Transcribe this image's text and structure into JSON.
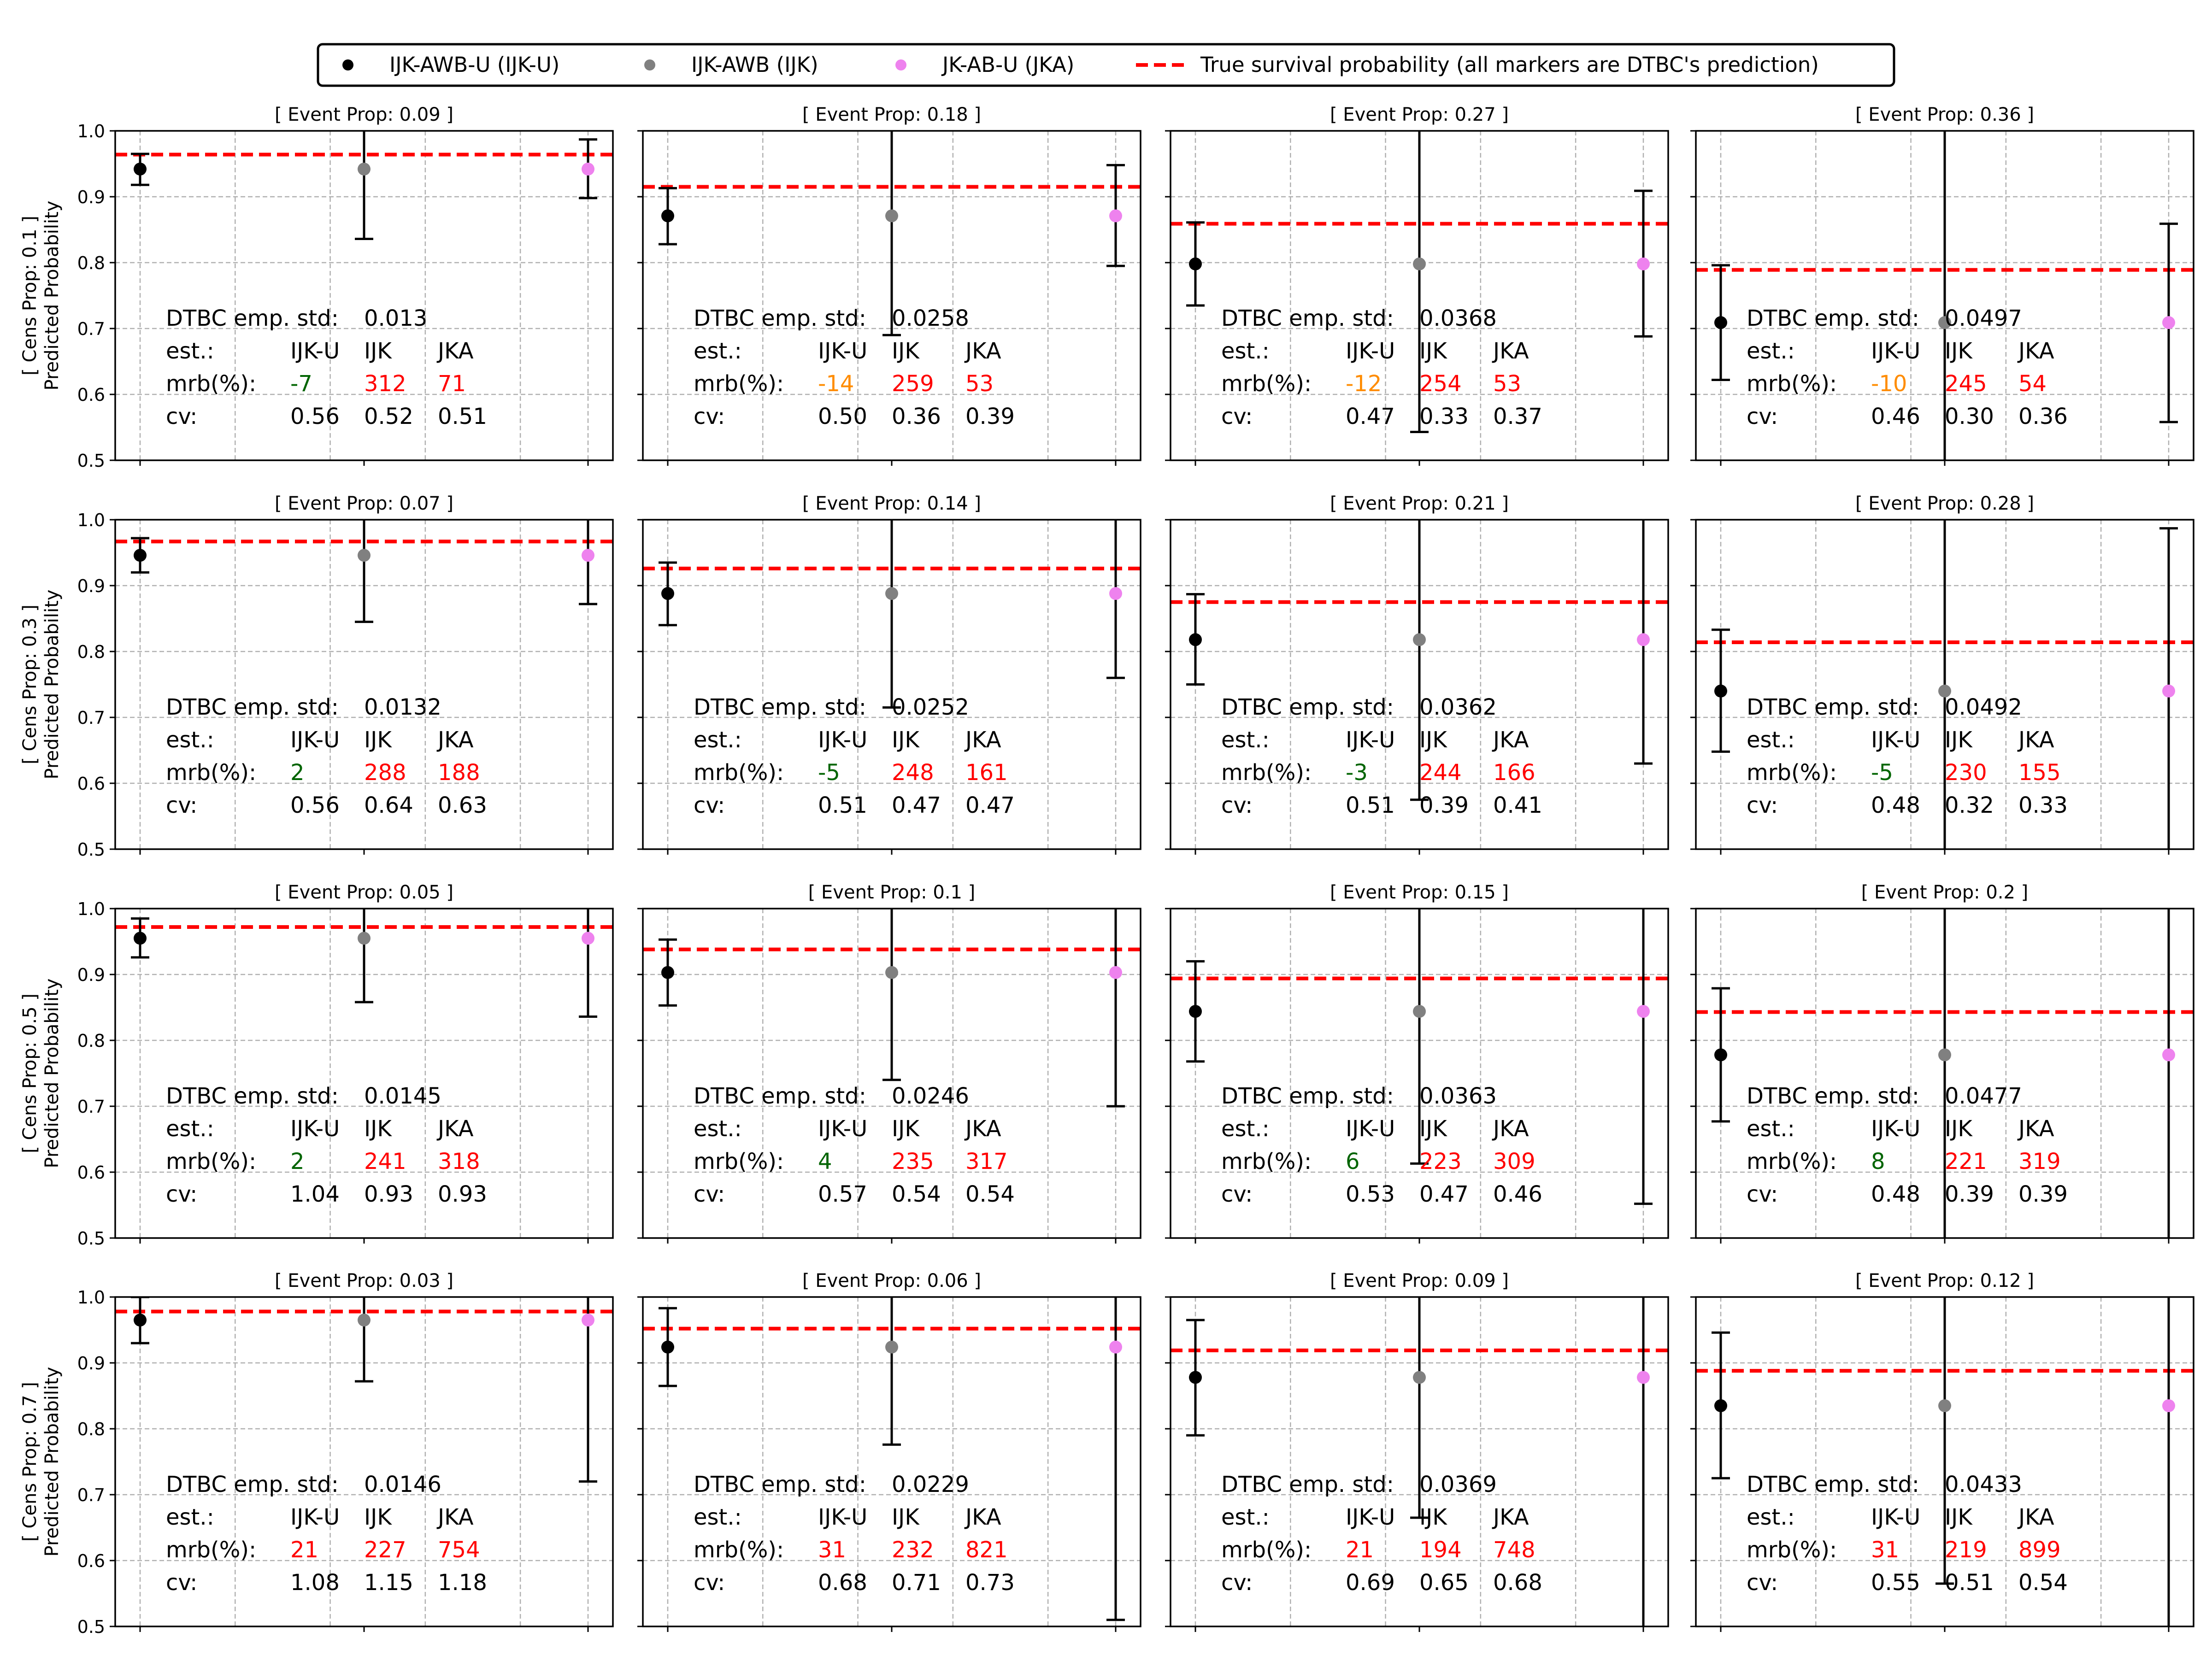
{
  "colors": {
    "IJK-U": "#000000",
    "IJK": "#808080",
    "JKA": "#ee82ee",
    "true_line": "#ff0000",
    "mrb_green": "#006400",
    "mrb_orange": "#ff8c00",
    "mrb_red": "#ff0000",
    "grid": "#b0b0b0"
  },
  "legend": [
    {
      "key": "IJK-U",
      "label": "IJK-AWB-U (IJK-U)",
      "marker": "dot"
    },
    {
      "key": "IJK",
      "label": "IJK-AWB (IJK)",
      "marker": "dot"
    },
    {
      "key": "JKA",
      "label": "JK-AB-U (JKA)",
      "marker": "dot"
    },
    {
      "key": "true",
      "label": "True survival probability (all markers are DTBC's prediction)",
      "marker": "dashed-line"
    }
  ],
  "text_labels": {
    "std_label": "DTBC emp. std:",
    "est_label": "est.:",
    "mrb_label": "mrb(%):",
    "cv_label": "cv:",
    "est_names": [
      "IJK-U",
      "IJK",
      "JKA"
    ]
  },
  "chart_data": {
    "type": "scatter",
    "yaxis_label": "Predicted Probability",
    "ylim": [
      0.5,
      1.0
    ],
    "yticks": [
      "0.5",
      "0.6",
      "0.7",
      "0.8",
      "0.9",
      "1.0"
    ],
    "grid": true,
    "legend_position": "top-center",
    "rows": [
      {
        "row_label": "[ Cens Prop: 0.1 ]",
        "panels": [
          {
            "title": "[ Event Prop: 0.09 ]",
            "true_prob": 0.964,
            "point": 0.942,
            "err": [
              [
                0.918,
                0.965
              ],
              [
                0.836,
                1.04
              ],
              [
                0.898,
                0.987
              ]
            ],
            "std": "0.013",
            "mrb": [
              "-7",
              "312",
              "71"
            ],
            "mrb_color": [
              "green",
              "red",
              "red"
            ],
            "cv": [
              "0.56",
              "0.52",
              "0.51"
            ]
          },
          {
            "title": "[ Event Prop: 0.18 ]",
            "true_prob": 0.915,
            "point": 0.871,
            "err": [
              [
                0.828,
                0.913
              ],
              [
                0.69,
                1.05
              ],
              [
                0.795,
                0.948
              ]
            ],
            "std": "0.0258",
            "mrb": [
              "-14",
              "259",
              "53"
            ],
            "mrb_color": [
              "orange",
              "red",
              "red"
            ],
            "cv": [
              "0.50",
              "0.36",
              "0.39"
            ]
          },
          {
            "title": "[ Event Prop: 0.27 ]",
            "true_prob": 0.859,
            "point": 0.798,
            "err": [
              [
                0.735,
                0.861
              ],
              [
                0.543,
                1.05
              ],
              [
                0.688,
                0.909
              ]
            ],
            "std": "0.0368",
            "mrb": [
              "-12",
              "254",
              "53"
            ],
            "mrb_color": [
              "orange",
              "red",
              "red"
            ],
            "cv": [
              "0.47",
              "0.33",
              "0.37"
            ]
          },
          {
            "title": "[ Event Prop: 0.36 ]",
            "true_prob": 0.789,
            "point": 0.709,
            "err": [
              [
                0.622,
                0.796
              ],
              [
                0.48,
                1.05
              ],
              [
                0.558,
                0.859
              ]
            ],
            "std": "0.0497",
            "mrb": [
              "-10",
              "245",
              "54"
            ],
            "mrb_color": [
              "orange",
              "red",
              "red"
            ],
            "cv": [
              "0.46",
              "0.30",
              "0.36"
            ]
          }
        ]
      },
      {
        "row_label": "[ Cens Prop: 0.3 ]",
        "panels": [
          {
            "title": "[ Event Prop: 0.07 ]",
            "true_prob": 0.967,
            "point": 0.946,
            "err": [
              [
                0.92,
                0.972
              ],
              [
                0.845,
                1.05
              ],
              [
                0.872,
                1.02
              ]
            ],
            "std": "0.0132",
            "mrb": [
              "2",
              "288",
              "188"
            ],
            "mrb_color": [
              "green",
              "red",
              "red"
            ],
            "cv": [
              "0.56",
              "0.64",
              "0.63"
            ]
          },
          {
            "title": "[ Event Prop: 0.14 ]",
            "true_prob": 0.926,
            "point": 0.888,
            "err": [
              [
                0.84,
                0.935
              ],
              [
                0.715,
                1.05
              ],
              [
                0.76,
                1.02
              ]
            ],
            "std": "0.0252",
            "mrb": [
              "-5",
              "248",
              "161"
            ],
            "mrb_color": [
              "green",
              "red",
              "red"
            ],
            "cv": [
              "0.51",
              "0.47",
              "0.47"
            ]
          },
          {
            "title": "[ Event Prop: 0.21 ]",
            "true_prob": 0.875,
            "point": 0.818,
            "err": [
              [
                0.75,
                0.887
              ],
              [
                0.575,
                1.05
              ],
              [
                0.63,
                1.05
              ]
            ],
            "std": "0.0362",
            "mrb": [
              "-3",
              "244",
              "166"
            ],
            "mrb_color": [
              "green",
              "red",
              "red"
            ],
            "cv": [
              "0.51",
              "0.39",
              "0.41"
            ]
          },
          {
            "title": "[ Event Prop: 0.28 ]",
            "true_prob": 0.814,
            "point": 0.74,
            "err": [
              [
                0.648,
                0.833
              ],
              [
                0.48,
                1.05
              ],
              [
                0.48,
                0.987
              ]
            ],
            "std": "0.0492",
            "mrb": [
              "-5",
              "230",
              "155"
            ],
            "mrb_color": [
              "green",
              "red",
              "red"
            ],
            "cv": [
              "0.48",
              "0.32",
              "0.33"
            ]
          }
        ]
      },
      {
        "row_label": "[ Cens Prop: 0.5 ]",
        "panels": [
          {
            "title": "[ Event Prop: 0.05 ]",
            "true_prob": 0.972,
            "point": 0.955,
            "err": [
              [
                0.926,
                0.985
              ],
              [
                0.858,
                1.05
              ],
              [
                0.836,
                1.07
              ]
            ],
            "std": "0.0145",
            "mrb": [
              "2",
              "241",
              "318"
            ],
            "mrb_color": [
              "green",
              "red",
              "red"
            ],
            "cv": [
              "1.04",
              "0.93",
              "0.93"
            ]
          },
          {
            "title": "[ Event Prop: 0.1 ]",
            "true_prob": 0.938,
            "point": 0.903,
            "err": [
              [
                0.853,
                0.953
              ],
              [
                0.74,
                1.05
              ],
              [
                0.7,
                1.05
              ]
            ],
            "std": "0.0246",
            "mrb": [
              "4",
              "235",
              "317"
            ],
            "mrb_color": [
              "green",
              "red",
              "red"
            ],
            "cv": [
              "0.57",
              "0.54",
              "0.54"
            ]
          },
          {
            "title": "[ Event Prop: 0.15 ]",
            "true_prob": 0.894,
            "point": 0.844,
            "err": [
              [
                0.768,
                0.92
              ],
              [
                0.613,
                1.05
              ],
              [
                0.552,
                1.05
              ]
            ],
            "std": "0.0363",
            "mrb": [
              "6",
              "223",
              "309"
            ],
            "mrb_color": [
              "green",
              "red",
              "red"
            ],
            "cv": [
              "0.53",
              "0.47",
              "0.46"
            ]
          },
          {
            "title": "[ Event Prop: 0.2 ]",
            "true_prob": 0.843,
            "point": 0.778,
            "err": [
              [
                0.677,
                0.879
              ],
              [
                0.48,
                1.05
              ],
              [
                0.48,
                1.05
              ]
            ],
            "std": "0.0477",
            "mrb": [
              "8",
              "221",
              "319"
            ],
            "mrb_color": [
              "green",
              "red",
              "red"
            ],
            "cv": [
              "0.48",
              "0.39",
              "0.39"
            ]
          }
        ]
      },
      {
        "row_label": "[ Cens Prop: 0.7 ]",
        "panels": [
          {
            "title": "[ Event Prop: 0.03 ]",
            "true_prob": 0.978,
            "point": 0.965,
            "err": [
              [
                0.93,
                1.0
              ],
              [
                0.872,
                1.05
              ],
              [
                0.72,
                1.05
              ]
            ],
            "std": "0.0146",
            "mrb": [
              "21",
              "227",
              "754"
            ],
            "mrb_color": [
              "red",
              "red",
              "red"
            ],
            "cv": [
              "1.08",
              "1.15",
              "1.18"
            ]
          },
          {
            "title": "[ Event Prop: 0.06 ]",
            "true_prob": 0.952,
            "point": 0.924,
            "err": [
              [
                0.865,
                0.983
              ],
              [
                0.776,
                1.05
              ],
              [
                0.51,
                1.05
              ]
            ],
            "std": "0.0229",
            "mrb": [
              "31",
              "232",
              "821"
            ],
            "mrb_color": [
              "red",
              "red",
              "red"
            ],
            "cv": [
              "0.68",
              "0.71",
              "0.73"
            ]
          },
          {
            "title": "[ Event Prop: 0.09 ]",
            "true_prob": 0.919,
            "point": 0.878,
            "err": [
              [
                0.79,
                0.965
              ],
              [
                0.665,
                1.05
              ],
              [
                0.48,
                1.05
              ]
            ],
            "std": "0.0369",
            "mrb": [
              "21",
              "194",
              "748"
            ],
            "mrb_color": [
              "red",
              "red",
              "red"
            ],
            "cv": [
              "0.69",
              "0.65",
              "0.68"
            ]
          },
          {
            "title": "[ Event Prop: 0.12 ]",
            "true_prob": 0.888,
            "point": 0.835,
            "err": [
              [
                0.725,
                0.946
              ],
              [
                0.565,
                1.05
              ],
              [
                0.48,
                1.05
              ]
            ],
            "std": "0.0433",
            "mrb": [
              "31",
              "219",
              "899"
            ],
            "mrb_color": [
              "red",
              "red",
              "red"
            ],
            "cv": [
              "0.55",
              "0.51",
              "0.54"
            ]
          }
        ]
      }
    ]
  }
}
